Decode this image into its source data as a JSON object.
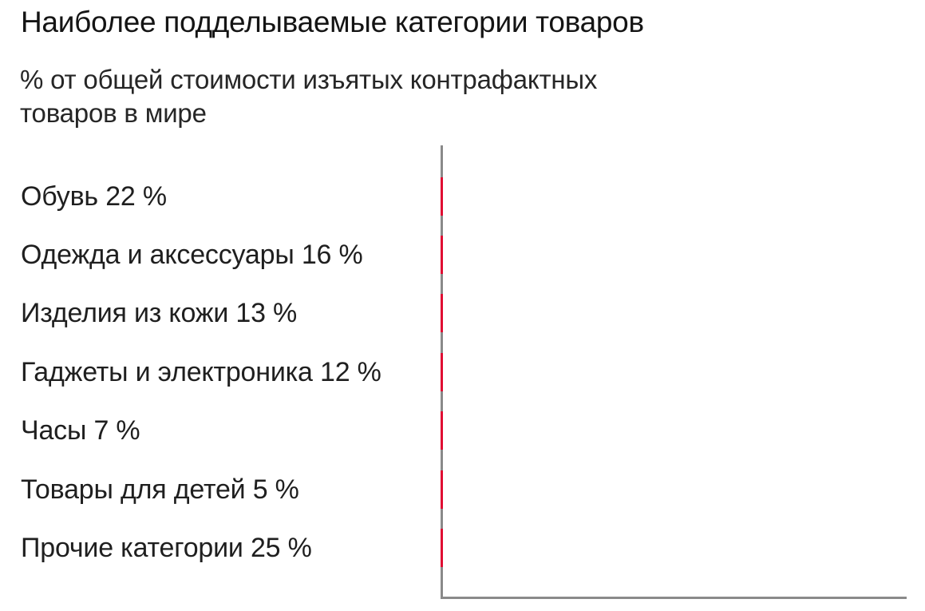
{
  "header": {
    "title": "Наиболее подделываемые категории товаров",
    "subtitle": "% от общей стоимости изъятых контрафактных товаров в мире",
    "subtitle_lines": [
      "% от общей стоимости изъятых контрафактных",
      "товаров в мире"
    ]
  },
  "chart_data": {
    "type": "bar",
    "orientation": "horizontal",
    "title": "Наиболее подделываемые категории товаров",
    "subtitle": "% от общей стоимости изъятых контрафактных товаров в мире",
    "categories": [
      "Обувь",
      "Одежда и аксессуары",
      "Изделия из кожи",
      "Гаджеты и электроника",
      "Часы",
      "Товары для детей",
      "Прочие категории"
    ],
    "values": [
      22,
      16,
      13,
      12,
      7,
      5,
      25
    ],
    "unit": "%",
    "labels": [
      "Обувь 22 %",
      "Одежда и аксессуары 16 %",
      "Изделия из кожи 13 %",
      "Гаджеты и электроника 12 %",
      "Часы 7 %",
      "Товары для детей 5 %",
      "Прочие категории 25 %"
    ],
    "bars_rendered_length": 0,
    "grid": false,
    "legend": false,
    "value_axis_ticks_visible": false,
    "bar_color": "#e00a32",
    "axis_color": "#8a8a8a",
    "text_color": "#1f1f1f"
  }
}
